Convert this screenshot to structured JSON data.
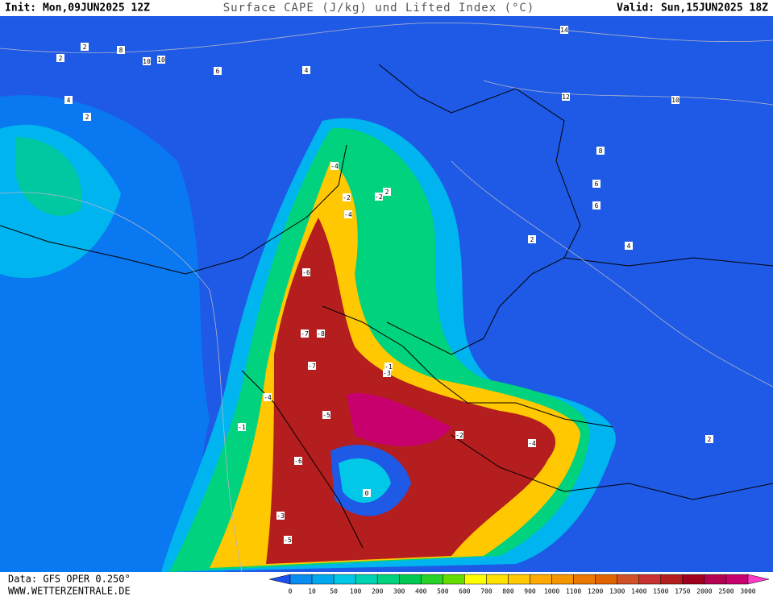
{
  "header": {
    "init": "Init: Mon,09JUN2025 12Z",
    "title": "Surface CAPE (J/kg) und Lifted Index (°C)",
    "valid": "Valid: Sun,15JUN2025 18Z"
  },
  "footer": {
    "data": "Data: GFS OPER 0.250°",
    "url": "WWW.WETTERZENTRALE.DE"
  },
  "legend": {
    "ticks": [
      0,
      10,
      50,
      100,
      200,
      300,
      400,
      500,
      600,
      700,
      800,
      900,
      1000,
      1100,
      1200,
      1300,
      1400,
      1500,
      1750,
      2000,
      2500,
      3000
    ],
    "colors": [
      "#1e50f0",
      "#0a8cf0",
      "#00a8f0",
      "#00c8e6",
      "#00d2b4",
      "#00d27d",
      "#00c850",
      "#28d228",
      "#64dc00",
      "#ffff00",
      "#ffe100",
      "#ffc800",
      "#ffaa00",
      "#f59600",
      "#eb7800",
      "#e16400",
      "#d25028",
      "#c83232",
      "#b41e1e",
      "#a0001e",
      "#b40050",
      "#c8006e",
      "#ff3cc8"
    ]
  },
  "contour_labels": [
    "2",
    "2",
    "10",
    "10",
    "8",
    "6",
    "4",
    "2",
    "12",
    "14",
    "10",
    "8",
    "6",
    "4",
    "-4",
    "-2",
    "-4",
    "-6",
    "-7",
    "-8",
    "-7",
    "-5",
    "-3",
    "-1",
    "-2",
    "0",
    "2",
    "-4",
    "-6",
    "-3",
    "-5",
    "-1",
    "4",
    "2",
    "6",
    "-2",
    "-4",
    "2"
  ]
}
